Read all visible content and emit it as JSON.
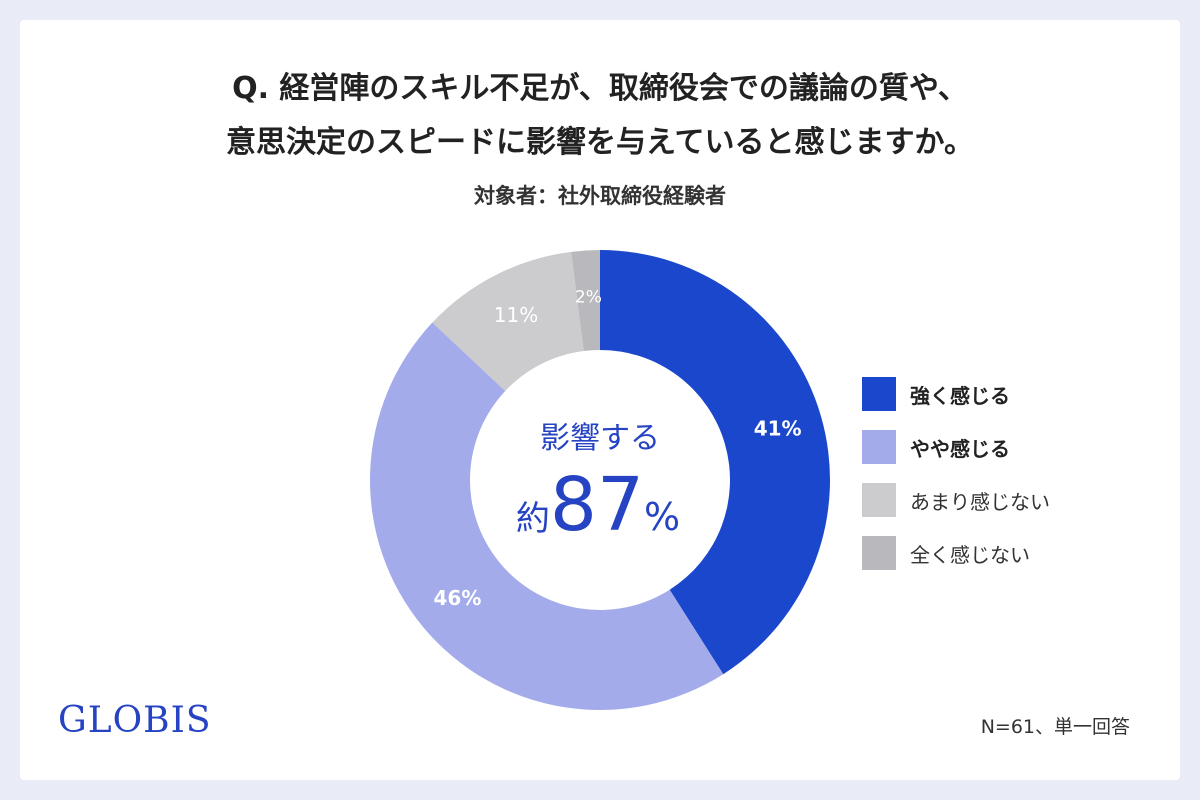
{
  "title_line1": "Q. 経営陣のスキル不足が、取締役会での議論の質や、",
  "title_line2": "意思決定のスピードに影響を与えていると感じますか。",
  "subtitle": "対象者：社外取締役経験者",
  "center_label": "影響する",
  "center_prefix": "約",
  "center_value": "87",
  "center_unit": "%",
  "logo": "GLOBIS",
  "footnote": "N=61、単一回答",
  "chart_data": {
    "type": "pie",
    "donut": true,
    "categories": [
      "強く感じる",
      "やや感じる",
      "あまり感じない",
      "全く感じない"
    ],
    "values": [
      41,
      46,
      11,
      2
    ],
    "labels": [
      "41%",
      "46%",
      "11%",
      "2%"
    ],
    "colors": [
      "#1b47cc",
      "#a3abea",
      "#cccccf",
      "#b9b9bd"
    ],
    "label_colors": [
      "#ffffff",
      "#ffffff",
      "#ffffff",
      "#ffffff"
    ],
    "legend_placement": "right",
    "legend_bold": [
      true,
      true,
      false,
      false
    ]
  }
}
